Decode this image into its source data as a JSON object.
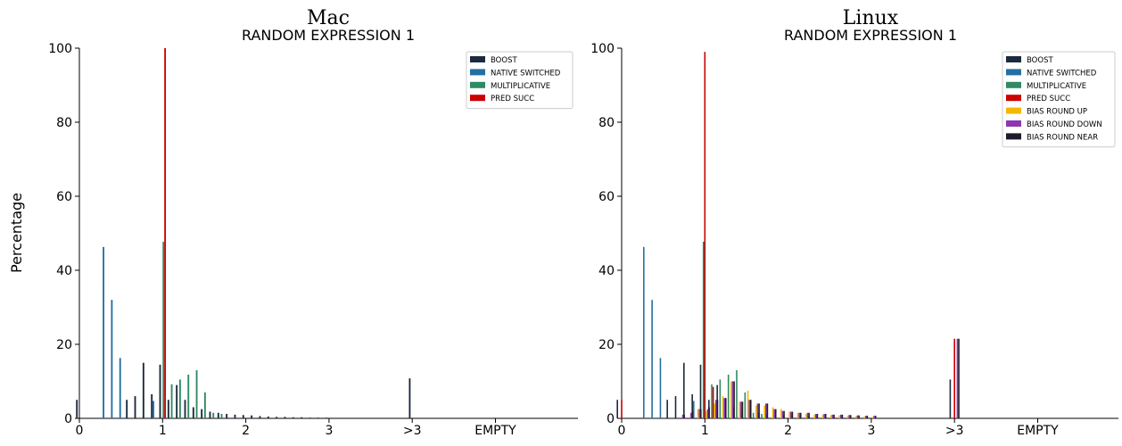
{
  "figure": {
    "ylabel": "Percentage"
  },
  "colors": {
    "BOOST": "#1b2a3e",
    "NATIVE SWITCHED": "#2271a3",
    "MULTIPLICATIVE": "#2e8b62",
    "PRED SUCC": "#cc0000",
    "BIAS ROUND UP": "#f5b800",
    "BIAS ROUND DOWN": "#8e35b0",
    "BIAS ROUND NEAR": "#1f1a2c"
  },
  "chart_data": [
    {
      "type": "bar",
      "title": "Mac",
      "subtitle": "RANDOM EXPRESSION 1",
      "ylabel": "Percentage",
      "ylim": [
        0,
        100
      ],
      "yticks": [
        0,
        20,
        40,
        60,
        80,
        100
      ],
      "xticks": [
        {
          "x": 0,
          "label": "0"
        },
        {
          "x": 1,
          "label": "1"
        },
        {
          "x": 2,
          "label": "2"
        },
        {
          "x": 3,
          "label": "3"
        },
        {
          "x": 4,
          "label": ">3"
        },
        {
          "x": 5,
          "label": "EMPTY"
        }
      ],
      "legend_position": "top-right",
      "series": [
        {
          "name": "BOOST",
          "points": [
            [
              0,
              5
            ],
            [
              0.6,
              5
            ],
            [
              0.7,
              6
            ],
            [
              0.8,
              15
            ],
            [
              0.9,
              6.5
            ],
            [
              1.0,
              14.5
            ],
            [
              1.1,
              5
            ],
            [
              1.2,
              9
            ],
            [
              1.3,
              5
            ],
            [
              1.4,
              3
            ],
            [
              1.5,
              2.5
            ],
            [
              1.6,
              1.8
            ],
            [
              1.7,
              1.5
            ],
            [
              1.8,
              1.2
            ],
            [
              1.9,
              1
            ],
            [
              2.0,
              0.9
            ],
            [
              2.1,
              0.8
            ],
            [
              2.2,
              0.6
            ],
            [
              2.3,
              0.5
            ],
            [
              2.4,
              0.4
            ],
            [
              2.5,
              0.4
            ],
            [
              2.6,
              0.3
            ],
            [
              2.7,
              0.3
            ],
            [
              2.8,
              0.2
            ],
            [
              2.9,
              0.2
            ],
            [
              3.0,
              0.2
            ],
            [
              4,
              10.8
            ]
          ]
        },
        {
          "name": "NATIVE SWITCHED",
          "points": [
            [
              0.3,
              46.3
            ],
            [
              0.4,
              32
            ],
            [
              0.5,
              16.3
            ],
            [
              0.9,
              4.7
            ]
          ]
        },
        {
          "name": "MULTIPLICATIVE",
          "points": [
            [
              1.0,
              47.7
            ],
            [
              1.1,
              9.2
            ],
            [
              1.2,
              10.5
            ],
            [
              1.3,
              11.8
            ],
            [
              1.4,
              13
            ],
            [
              1.5,
              7
            ],
            [
              1.6,
              1.5
            ],
            [
              1.7,
              1.2
            ]
          ]
        },
        {
          "name": "PRED SUCC",
          "points": [
            [
              1.0,
              100
            ]
          ]
        }
      ]
    },
    {
      "type": "bar",
      "title": "Linux",
      "subtitle": "RANDOM EXPRESSION 1",
      "ylim": [
        0,
        100
      ],
      "yticks": [
        0,
        20,
        40,
        60,
        80,
        100
      ],
      "xticks": [
        {
          "x": 0,
          "label": "0"
        },
        {
          "x": 1,
          "label": "1"
        },
        {
          "x": 2,
          "label": "2"
        },
        {
          "x": 3,
          "label": "3"
        },
        {
          "x": 4,
          "label": ">3"
        },
        {
          "x": 5,
          "label": "EMPTY"
        }
      ],
      "legend_position": "top-right",
      "series": [
        {
          "name": "BOOST",
          "points": [
            [
              0,
              5
            ],
            [
              0.6,
              5
            ],
            [
              0.7,
              6
            ],
            [
              0.8,
              15
            ],
            [
              0.9,
              6.5
            ],
            [
              1.0,
              14.5
            ],
            [
              1.1,
              5
            ],
            [
              1.2,
              9
            ],
            [
              1.3,
              5
            ],
            [
              1.4,
              3
            ],
            [
              1.5,
              2.5
            ],
            [
              1.6,
              1.8
            ],
            [
              1.7,
              1.5
            ],
            [
              1.8,
              1.2
            ],
            [
              1.9,
              1
            ],
            [
              2.0,
              0.9
            ],
            [
              2.1,
              0.8
            ],
            [
              2.2,
              0.6
            ],
            [
              2.3,
              0.5
            ],
            [
              2.4,
              0.4
            ],
            [
              2.5,
              0.4
            ],
            [
              2.6,
              0.3
            ],
            [
              2.7,
              0.3
            ],
            [
              2.8,
              0.2
            ],
            [
              2.9,
              0.2
            ],
            [
              3.0,
              0.2
            ],
            [
              4,
              10.5
            ]
          ]
        },
        {
          "name": "NATIVE SWITCHED",
          "points": [
            [
              0.3,
              46.3
            ],
            [
              0.4,
              32
            ],
            [
              0.5,
              16.3
            ],
            [
              0.9,
              4.7
            ]
          ]
        },
        {
          "name": "MULTIPLICATIVE",
          "points": [
            [
              1.0,
              47.7
            ],
            [
              1.1,
              9.2
            ],
            [
              1.2,
              10.5
            ],
            [
              1.3,
              11.8
            ],
            [
              1.4,
              13
            ],
            [
              1.5,
              7
            ],
            [
              1.6,
              1.5
            ],
            [
              1.7,
              1.2
            ]
          ]
        },
        {
          "name": "PRED SUCC",
          "points": [
            [
              0,
              5
            ],
            [
              1.0,
              99
            ],
            [
              1.1,
              8.5
            ],
            [
              4,
              21.5
            ]
          ]
        },
        {
          "name": "BIAS ROUND UP",
          "points": [
            [
              0.9,
              2.5
            ],
            [
              1.0,
              2
            ],
            [
              1.1,
              4
            ],
            [
              1.2,
              6
            ],
            [
              1.3,
              10
            ],
            [
              1.4,
              4.5
            ],
            [
              1.5,
              7.5
            ],
            [
              1.6,
              3.5
            ],
            [
              1.7,
              3.5
            ],
            [
              1.8,
              3
            ],
            [
              1.9,
              2.5
            ],
            [
              2.0,
              1.8
            ],
            [
              2.1,
              1.5
            ],
            [
              2.2,
              1.2
            ],
            [
              2.3,
              1
            ],
            [
              2.4,
              1
            ],
            [
              2.5,
              0.9
            ],
            [
              2.6,
              0.8
            ],
            [
              2.7,
              0.7
            ],
            [
              2.8,
              0.6
            ],
            [
              2.9,
              0.5
            ],
            [
              3.0,
              0.4
            ]
          ]
        },
        {
          "name": "BIAS ROUND DOWN",
          "points": [
            [
              0.7,
              1
            ],
            [
              0.8,
              1.5
            ],
            [
              0.9,
              2.5
            ],
            [
              1.0,
              2.5
            ],
            [
              1.1,
              5
            ],
            [
              1.2,
              5.5
            ],
            [
              1.3,
              10
            ],
            [
              1.4,
              4.5
            ],
            [
              1.5,
              5
            ],
            [
              1.6,
              4
            ],
            [
              1.7,
              4
            ],
            [
              1.8,
              2.5
            ],
            [
              1.9,
              2
            ],
            [
              2.0,
              1.8
            ],
            [
              2.1,
              1.5
            ],
            [
              2.2,
              1.5
            ],
            [
              2.3,
              1.2
            ],
            [
              2.4,
              1.2
            ],
            [
              2.5,
              1
            ],
            [
              2.6,
              1
            ],
            [
              2.7,
              0.9
            ],
            [
              2.8,
              0.8
            ],
            [
              2.9,
              0.7
            ],
            [
              3.0,
              0.7
            ],
            [
              4,
              21.5
            ]
          ]
        },
        {
          "name": "BIAS ROUND NEAR",
          "points": [
            [
              0.7,
              1
            ],
            [
              0.8,
              2
            ],
            [
              0.9,
              2.5
            ],
            [
              1.0,
              3
            ],
            [
              1.1,
              5
            ],
            [
              1.2,
              5.5
            ],
            [
              1.3,
              10
            ],
            [
              1.4,
              4.5
            ],
            [
              1.5,
              5
            ],
            [
              1.6,
              4
            ],
            [
              1.7,
              4
            ],
            [
              1.8,
              2.5
            ],
            [
              1.9,
              2
            ],
            [
              2.0,
              1.8
            ],
            [
              2.1,
              1.5
            ],
            [
              2.2,
              1.5
            ],
            [
              2.3,
              1.2
            ],
            [
              2.4,
              1.2
            ],
            [
              2.5,
              1
            ],
            [
              2.6,
              1
            ],
            [
              2.7,
              0.9
            ],
            [
              2.8,
              0.8
            ],
            [
              2.9,
              0.7
            ],
            [
              3.0,
              0.7
            ],
            [
              4,
              21.5
            ]
          ]
        }
      ]
    }
  ]
}
